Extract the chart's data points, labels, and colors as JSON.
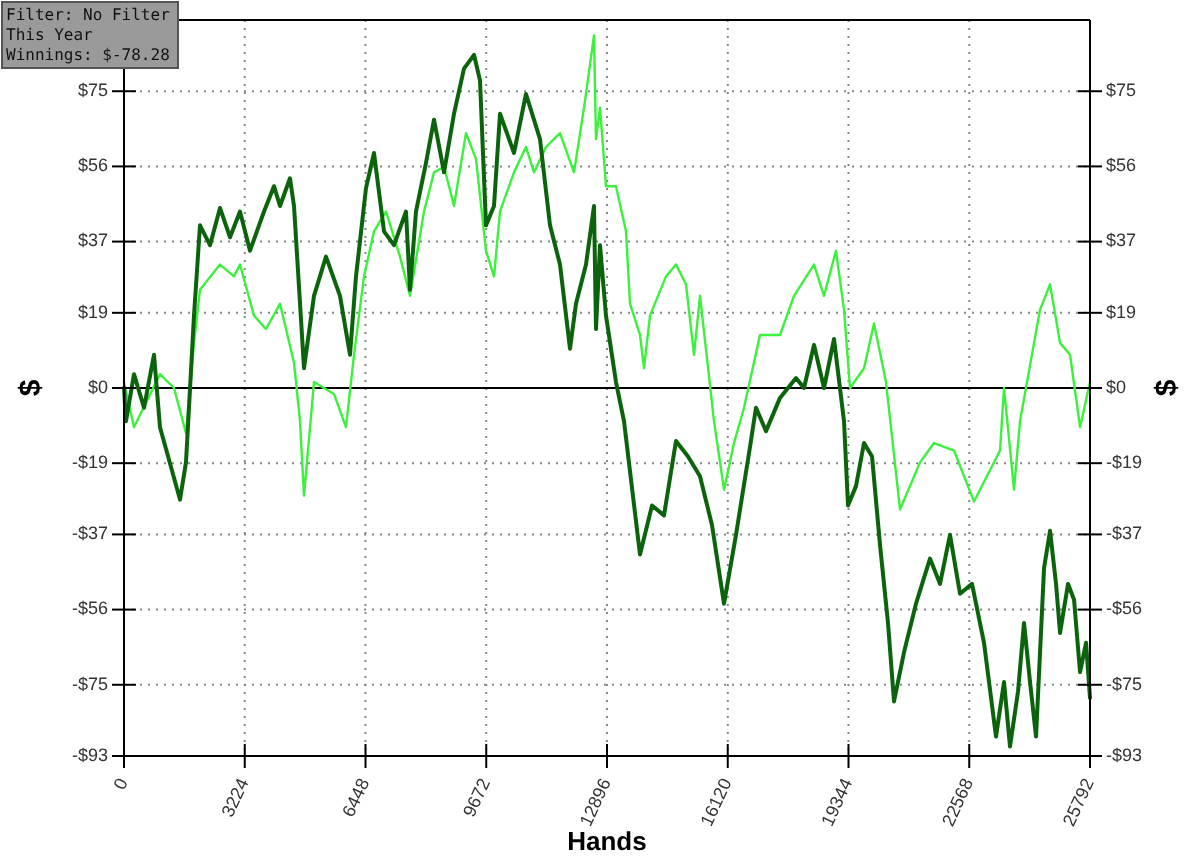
{
  "chart_data": {
    "type": "line",
    "xlabel": "Hands",
    "ylabel": "$",
    "y2label": "$",
    "annotations": [
      "Filter: No Filter",
      "This Year",
      "Winnings: $-78.28"
    ],
    "xlim": [
      0,
      25792
    ],
    "xticks": [
      0,
      3224,
      6448,
      9672,
      12896,
      16120,
      19344,
      22568,
      25792
    ],
    "ylim": [
      -93,
      93
    ],
    "yticks": [
      {
        "value": -93,
        "label": "-$93"
      },
      {
        "value": -75,
        "label": "-$75"
      },
      {
        "value": -56,
        "label": "-$56"
      },
      {
        "value": -37,
        "label": "-$37"
      },
      {
        "value": -19,
        "label": "-$19"
      },
      {
        "value": 0,
        "label": "$0"
      },
      {
        "value": 19,
        "label": "$19"
      },
      {
        "value": 37,
        "label": "$37"
      },
      {
        "value": 56,
        "label": "$56"
      },
      {
        "value": 75,
        "label": "$75"
      }
    ],
    "y2lim": [
      -93,
      93
    ],
    "y2ticks": [
      {
        "value": -93,
        "label": "-$93"
      },
      {
        "value": -75,
        "label": "-$75"
      },
      {
        "value": -56,
        "label": "-$56"
      },
      {
        "value": -37,
        "label": "-$37"
      },
      {
        "value": -19,
        "label": "-$19"
      },
      {
        "value": 0,
        "label": "$0"
      },
      {
        "value": 19,
        "label": "$19"
      },
      {
        "value": 37,
        "label": "$37"
      },
      {
        "value": 56,
        "label": "$56"
      },
      {
        "value": 75,
        "label": "$75"
      }
    ],
    "grid": true,
    "line_style": "solid",
    "marker": "none",
    "ref_lines": [
      {
        "axis": "y",
        "value": 0,
        "color": "#000000"
      }
    ],
    "series": [
      {
        "color": "#3ef03e",
        "x": [
          0,
          267,
          961,
          1335,
          1655,
          1869,
          2029,
          2563,
          2937,
          3097,
          3471,
          3791,
          4165,
          4539,
          4699,
          4806,
          5073,
          5607,
          5927,
          6141,
          6408,
          6675,
          6995,
          7369,
          7636,
          8010,
          8277,
          8544,
          8811,
          9131,
          9398,
          9665,
          9879,
          10039,
          10413,
          10733,
          10947,
          11267,
          11641,
          12015,
          12282,
          12549,
          12602,
          12709,
          12869,
          13136,
          13403,
          13510,
          13777,
          13884,
          14044,
          14471,
          14738,
          15005,
          15219,
          15379,
          15753,
          16020,
          16287,
          16554,
          16981,
          17515,
          17889,
          18423,
          18690,
          19010,
          19224,
          19384,
          19758,
          20025,
          20345,
          20719,
          21253,
          21627,
          22161,
          22695,
          23389,
          23496,
          23763,
          23923,
          24458,
          24725,
          24992,
          25259,
          25526,
          25792
        ],
        "values": [
          1.5,
          -9.9,
          3.5,
          0,
          -11.4,
          11.4,
          24.8,
          31.2,
          28.2,
          31.2,
          18.3,
          14.9,
          21.3,
          6.4,
          -8.4,
          -27.2,
          1.5,
          -1.5,
          -9.9,
          8.4,
          28.2,
          39.6,
          44.6,
          33.2,
          23.3,
          44.6,
          54.5,
          55.9,
          46.0,
          64.4,
          57.9,
          34.7,
          28.2,
          44.6,
          54.5,
          60.9,
          54.5,
          60.9,
          64.4,
          54.5,
          70.8,
          89.1,
          62.9,
          70.8,
          51.0,
          51.0,
          39.6,
          21.3,
          13.4,
          5.0,
          18.3,
          28.2,
          31.2,
          26.2,
          8.4,
          23.3,
          -8.4,
          -25.7,
          -13.9,
          -5.0,
          13.4,
          13.4,
          23.3,
          31.2,
          23.3,
          34.7,
          19.8,
          0,
          5.0,
          16.3,
          1.5,
          -30.7,
          -18.8,
          -13.9,
          -15.8,
          -28.7,
          -15.8,
          0,
          -25.7,
          -8.4,
          19.8,
          26.2,
          11.4,
          8.4,
          -9.9,
          1.5
        ]
      },
      {
        "color": "#0b640b",
        "x": [
          0,
          53,
          267,
          534,
          801,
          961,
          1495,
          1655,
          1869,
          2029,
          2296,
          2563,
          2830,
          3097,
          3364,
          3738,
          4005,
          4165,
          4432,
          4539,
          4806,
          5073,
          5393,
          5767,
          6034,
          6194,
          6461,
          6675,
          6942,
          7209,
          7529,
          7636,
          7796,
          8063,
          8277,
          8544,
          8811,
          9078,
          9345,
          9505,
          9665,
          9879,
          10039,
          10413,
          10733,
          11107,
          11374,
          11641,
          11908,
          12068,
          12335,
          12549,
          12602,
          12709,
          12869,
          13136,
          13350,
          13777,
          14098,
          14418,
          14738,
          15059,
          15379,
          15700,
          16020,
          16340,
          16714,
          16874,
          17141,
          17515,
          17942,
          18156,
          18423,
          18690,
          18957,
          19224,
          19331,
          19544,
          19758,
          19972,
          20185,
          20399,
          20559,
          20826,
          21146,
          21520,
          21787,
          22054,
          22321,
          22642,
          22962,
          23282,
          23496,
          23656,
          23870,
          24030,
          24191,
          24351,
          24565,
          24725,
          24885,
          24992,
          25206,
          25366,
          25526,
          25686,
          25792
        ],
        "values": [
          0,
          -8.4,
          3.5,
          -5.0,
          8.4,
          -9.9,
          -28.2,
          -18.8,
          18.3,
          41.1,
          36.1,
          45.5,
          38.1,
          44.6,
          34.7,
          44.6,
          51.0,
          46.0,
          53.0,
          46.0,
          5.0,
          23.3,
          33.2,
          23.3,
          8.4,
          28.2,
          50.5,
          59.4,
          39.6,
          36.1,
          44.6,
          24.8,
          44.6,
          56.9,
          67.8,
          54.5,
          69.3,
          80.7,
          84.2,
          77.7,
          41.1,
          46.0,
          69.3,
          59.4,
          74.3,
          62.9,
          41.1,
          31.2,
          9.9,
          21.3,
          31.2,
          46.0,
          14.9,
          36.1,
          18.3,
          1.5,
          -8.4,
          -42.1,
          -29.7,
          -32.2,
          -13.4,
          -17.3,
          -22.3,
          -34.7,
          -54.5,
          -37.1,
          -14.9,
          -5.0,
          -10.9,
          -2.5,
          2.5,
          0,
          10.9,
          0,
          12.4,
          -8.4,
          -29.7,
          -24.8,
          -13.9,
          -17.3,
          -39.6,
          -59.4,
          -79.2,
          -66.8,
          -54.5,
          -43.1,
          -49.5,
          -37.1,
          -52.0,
          -49.5,
          -64.4,
          -88.1,
          -74.3,
          -90.6,
          -76.7,
          -59.4,
          -74.3,
          -88.1,
          -45.5,
          -36.1,
          -49.5,
          -61.9,
          -49.5,
          -53.5,
          -71.8,
          -64.4,
          -78.3
        ]
      }
    ]
  }
}
